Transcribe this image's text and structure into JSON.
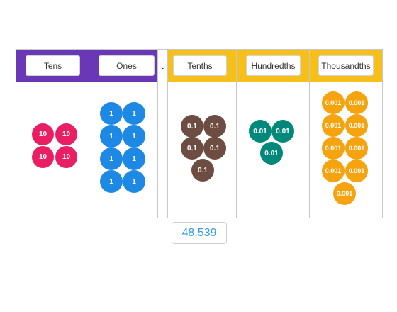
{
  "columns": {
    "tens": {
      "label": "Tens",
      "disc_value": "10",
      "color": "#e91e63"
    },
    "ones": {
      "label": "Ones",
      "disc_value": "1",
      "color": "#1e88e5"
    },
    "decimal_point": ".",
    "tenths": {
      "label": "Tenths",
      "disc_value": "0.1",
      "color": "#6d4c41"
    },
    "hundredths": {
      "label": "Hundredths",
      "disc_value": "0.01",
      "color": "#00897b"
    },
    "thousandths": {
      "label": "Thousandths",
      "disc_value": "0.001",
      "color": "#f5a30f"
    }
  },
  "counts": {
    "tens": 4,
    "ones": 8,
    "tenths": 5,
    "hundredths": 3,
    "thousandths": 9
  },
  "readout": {
    "value": "48.539"
  },
  "colors": {
    "whole_header": "#6a38b6",
    "decimal_header": "#f6bf1a",
    "readout_text": "#2e9be6"
  }
}
